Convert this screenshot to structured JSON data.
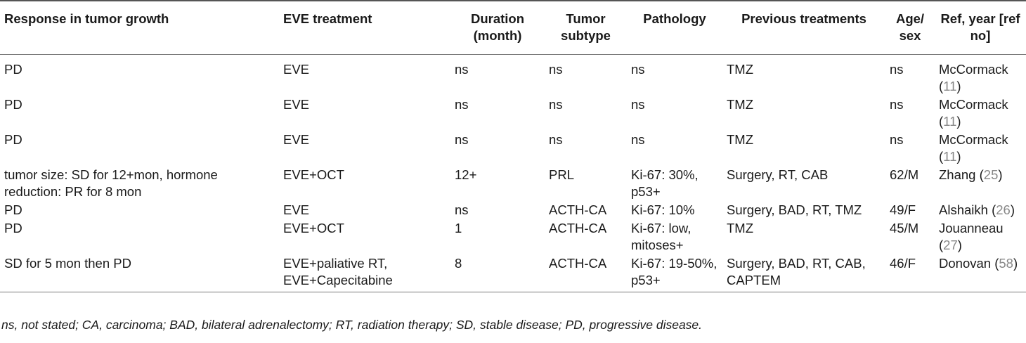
{
  "headers": {
    "response": "Response in tumor growth",
    "treatment": "EVE treatment",
    "duration": "Duration (month)",
    "subtype": "Tumor subtype",
    "pathology": "Pathology",
    "previous": "Previous treatments",
    "agesex": "Age/ sex",
    "ref": "Ref, year [ref no]"
  },
  "rows": [
    {
      "response": "PD",
      "treatment": "EVE",
      "duration": "ns",
      "subtype": "ns",
      "pathology": "ns",
      "previous": "TMZ",
      "agesex": "ns",
      "author": "McCormack",
      "ref_no": "11"
    },
    {
      "response": "PD",
      "treatment": "EVE",
      "duration": "ns",
      "subtype": "ns",
      "pathology": "ns",
      "previous": "TMZ",
      "agesex": "ns",
      "author": "McCormack",
      "ref_no": "11"
    },
    {
      "response": "PD",
      "treatment": "EVE",
      "duration": "ns",
      "subtype": "ns",
      "pathology": "ns",
      "previous": "TMZ",
      "agesex": "ns",
      "author": "McCormack",
      "ref_no": "11"
    },
    {
      "response": "tumor size: SD for 12+mon, hormone reduction: PR for 8 mon",
      "treatment": "EVE+OCT",
      "duration": "12+",
      "subtype": "PRL",
      "pathology": "Ki-67: 30%, p53+",
      "previous": "Surgery, RT, CAB",
      "agesex": "62/M",
      "author": "Zhang",
      "ref_no": "25"
    },
    {
      "response": "PD",
      "treatment": "EVE",
      "duration": "ns",
      "subtype": "ACTH-CA",
      "pathology": "Ki-67: 10%",
      "previous": "Surgery, BAD, RT, TMZ",
      "agesex": "49/F",
      "author": "Alshaikh",
      "ref_no": "26"
    },
    {
      "response": "PD",
      "treatment": "EVE+OCT",
      "duration": "1",
      "subtype": "ACTH-CA",
      "pathology": "Ki-67: low, mitoses+",
      "previous": "TMZ",
      "agesex": "45/M",
      "author": "Jouanneau",
      "ref_no": "27"
    },
    {
      "response": "SD for 5 mon then PD",
      "treatment": "EVE+paliative RT, EVE+Capecitabine",
      "duration": "8",
      "subtype": "ACTH-CA",
      "pathology": "Ki-67: 19-50%, p53+",
      "previous": "Surgery, BAD, RT, CAB, CAPTEM",
      "agesex": "46/F",
      "author": "Donovan",
      "ref_no": "58"
    }
  ],
  "footnote": "ns, not stated; CA, carcinoma; BAD, bilateral adrenalectomy; RT, radiation therapy; SD, stable disease; PD, progressive disease."
}
